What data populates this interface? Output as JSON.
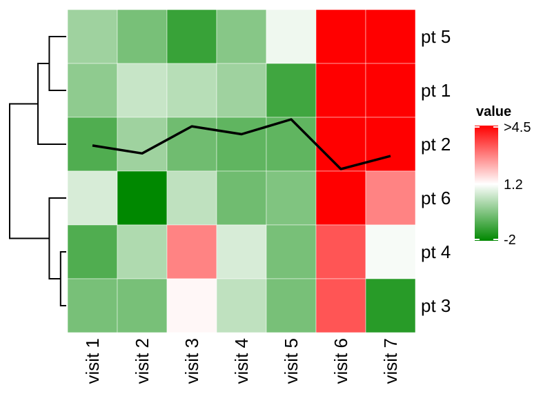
{
  "chart_data": {
    "type": "heatmap",
    "title": "",
    "xlabel": "",
    "ylabel": "",
    "columns": [
      "visit 1",
      "visit 2",
      "visit 3",
      "visit 4",
      "visit 5",
      "visit 6",
      "visit 7"
    ],
    "rows": [
      "pt 5",
      "pt 1",
      "pt 2",
      "pt 6",
      "pt 4",
      "pt 3"
    ],
    "values": [
      [
        0.0,
        -0.5,
        -1.3,
        -0.3,
        1.0,
        4.5,
        4.5
      ],
      [
        -0.2,
        0.5,
        0.3,
        0.0,
        -1.2,
        4.5,
        4.5
      ],
      [
        -1.0,
        0.0,
        -0.6,
        -0.8,
        -0.8,
        4.5,
        4.5
      ],
      [
        0.7,
        -2.0,
        0.4,
        -0.6,
        -0.4,
        4.5,
        2.8
      ],
      [
        -1.0,
        0.2,
        2.8,
        0.7,
        -0.5,
        3.4,
        1.1
      ],
      [
        -0.5,
        -0.5,
        1.3,
        0.4,
        -0.5,
        3.4,
        -1.5
      ]
    ],
    "line_overlay": {
      "row": "pt 2",
      "values": [
        0.6,
        -0.3,
        2.8,
        1.9,
        3.6,
        -2.1,
        -0.6
      ]
    },
    "legend": {
      "title": "value",
      "ticks": [
        ">4.5",
        "1.2",
        "-2"
      ],
      "tick_values": [
        4.5,
        1.2,
        -2
      ],
      "range": [
        -2,
        4.5
      ],
      "colors": {
        "low": "#008800",
        "mid": "#ffffff",
        "high": "#ff0000"
      },
      "placement": "right"
    },
    "dendrogram": {
      "side": "left",
      "order": [
        "pt 5",
        "pt 1",
        "pt 2",
        "pt 6",
        "pt 4",
        "pt 3"
      ],
      "merges": [
        {
          "id": "A",
          "children": [
            "pt 5",
            "pt 1"
          ],
          "height": 0.3
        },
        {
          "id": "B",
          "children": [
            "A",
            "pt 2"
          ],
          "height": 0.5
        },
        {
          "id": "C",
          "children": [
            "pt 4",
            "pt 3"
          ],
          "height": 0.1
        },
        {
          "id": "D",
          "children": [
            "pt 6",
            "C"
          ],
          "height": 0.3
        },
        {
          "id": "E",
          "children": [
            "B",
            "D"
          ],
          "height": 1.0
        }
      ]
    }
  }
}
